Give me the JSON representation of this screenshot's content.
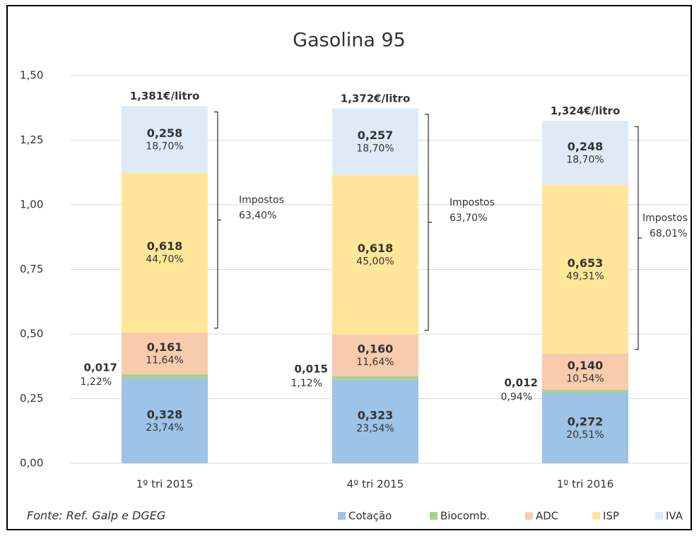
{
  "chart_data": {
    "type": "stacked_bar",
    "title": "Gasolina 95",
    "categories": [
      "1º tri 2015",
      "4º tri 2015",
      "1º tri 2016"
    ],
    "series": [
      {
        "name": "Cotação",
        "color": "#9dc3e6",
        "values": [
          0.328,
          0.323,
          0.272
        ],
        "value_labels": [
          "0,328",
          "0,323",
          "0,272"
        ],
        "shares": [
          23.74,
          23.54,
          20.51
        ],
        "share_labels": [
          "23,74%",
          "23,54%",
          "20,51%"
        ]
      },
      {
        "name": "Biocomb.",
        "color": "#a9d18e",
        "values": [
          0.017,
          0.015,
          0.012
        ],
        "value_labels": [
          "0,017",
          "0,015",
          "0,012"
        ],
        "shares": [
          1.22,
          1.12,
          0.94
        ],
        "share_labels": [
          "1,22%",
          "1,12%",
          "0,94%"
        ]
      },
      {
        "name": "ADC",
        "color": "#f8cbad",
        "values": [
          0.161,
          0.16,
          0.14
        ],
        "value_labels": [
          "0,161",
          "0,160",
          "0,140"
        ],
        "shares": [
          11.64,
          11.64,
          10.54
        ],
        "share_labels": [
          "11,64%",
          "11,64%",
          "10,54%"
        ]
      },
      {
        "name": "ISP",
        "color": "#ffe699",
        "values": [
          0.618,
          0.618,
          0.653
        ],
        "value_labels": [
          "0,618",
          "0,618",
          "0,653"
        ],
        "shares": [
          44.7,
          45.0,
          49.31
        ],
        "share_labels": [
          "44,70%",
          "45,00%",
          "49,31%"
        ]
      },
      {
        "name": "IVA",
        "color": "#deebf7",
        "values": [
          0.258,
          0.257,
          0.248
        ],
        "value_labels": [
          "0,258",
          "0,257",
          "0,248"
        ],
        "shares": [
          18.7,
          18.7,
          18.7
        ],
        "share_labels": [
          "18,70%",
          "18,70%",
          "18,70%"
        ]
      }
    ],
    "totals": [
      1.381,
      1.372,
      1.324
    ],
    "total_labels": [
      "1,381€/litro",
      "1,372€/litro",
      "1,324€/litro"
    ],
    "tax_label": "Impostos",
    "tax_shares": [
      63.4,
      63.7,
      68.01
    ],
    "tax_share_labels": [
      "63,40%",
      "63,70%",
      "68,01%"
    ],
    "source": "Fonte: Ref. Galp e DGEG",
    "ylim": [
      0,
      1.5
    ],
    "yticks": [
      {
        "value": 0,
        "label": "0,00"
      },
      {
        "value": 0.25,
        "label": "0,25"
      },
      {
        "value": 0.5,
        "label": "0,50"
      },
      {
        "value": 0.75,
        "label": "0,75"
      },
      {
        "value": 1,
        "label": "1,00"
      },
      {
        "value": 1.25,
        "label": "1,25"
      },
      {
        "value": 1.5,
        "label": "1,50"
      }
    ],
    "grid": true,
    "legend": "bottom-right"
  }
}
